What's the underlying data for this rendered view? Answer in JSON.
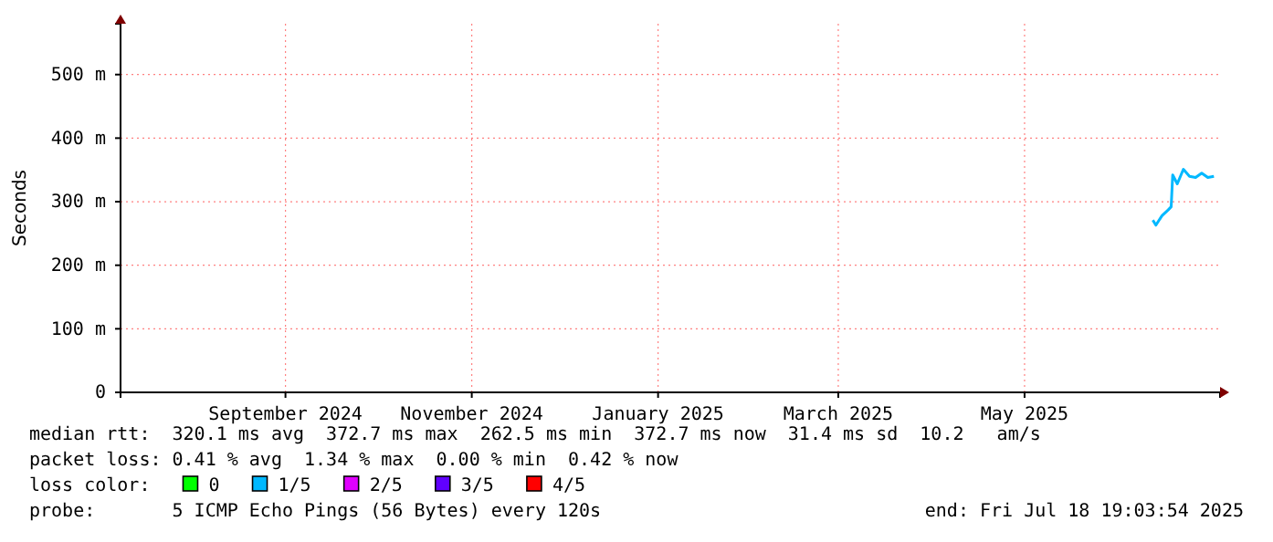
{
  "chart_data": {
    "type": "line",
    "ylabel": "Seconds",
    "legend_title": "loss color:",
    "legend": "bottom",
    "x": [
      "2025-06-26",
      "2025-06-27",
      "2025-06-29",
      "2025-07-01",
      "2025-07-02",
      "2025-07-02T12:00",
      "2025-07-04",
      "2025-07-06",
      "2025-07-08",
      "2025-07-10",
      "2025-07-12",
      "2025-07-14",
      "2025-07-16"
    ],
    "xlim": [
      "2024-07-23",
      "2025-07-18"
    ],
    "xticks": [
      {
        "value": "2024-09-15",
        "label": "September 2024"
      },
      {
        "value": "2024-11-15",
        "label": "November 2024"
      },
      {
        "value": "2025-01-15",
        "label": "January 2025"
      },
      {
        "value": "2025-03-15",
        "label": "March 2025"
      },
      {
        "value": "2025-05-15",
        "label": "May 2025"
      }
    ],
    "ylim": [
      0,
      580
    ],
    "yticks": [
      0,
      {
        "value": 100,
        "label": "100 m"
      },
      {
        "value": 200,
        "label": "200 m"
      },
      {
        "value": 300,
        "label": "300 m"
      },
      {
        "value": 400,
        "label": "400 m"
      },
      {
        "value": 500,
        "label": "500 m"
      }
    ],
    "grid": true,
    "series": [
      {
        "name": "0",
        "color": "#00ff00",
        "values": [
          null,
          null,
          null,
          null,
          null,
          null,
          null,
          null,
          null,
          null,
          null,
          null,
          null
        ]
      },
      {
        "name": "1/5",
        "color": "#00b8ff",
        "values": [
          271,
          263,
          278,
          287,
          292,
          342,
          328,
          351,
          340,
          338,
          345,
          338,
          340
        ]
      },
      {
        "name": "2/5",
        "color": "#e000ff",
        "values": [
          null,
          null,
          null,
          null,
          null,
          null,
          null,
          null,
          null,
          null,
          null,
          null,
          null
        ]
      },
      {
        "name": "3/5",
        "color": "#6000ff",
        "values": [
          null,
          null,
          null,
          null,
          null,
          null,
          null,
          null,
          null,
          null,
          null,
          null,
          null
        ]
      },
      {
        "name": "4/5",
        "color": "#ff0000",
        "values": [
          null,
          null,
          null,
          null,
          null,
          null,
          null,
          null,
          null,
          null,
          null,
          null,
          null
        ]
      }
    ],
    "annotations": [
      "median rtt:  320.1 ms avg  372.7 ms max  262.5 ms min  372.7 ms now  31.4 ms sd  10.2   am/s",
      "packet loss: 0.41 % avg  1.34 % max  0.00 % min  0.42 % now",
      "probe:       5 ICMP Echo Pings (56 Bytes) every 120s",
      "end: Fri Jul 18 19:03:54 2025"
    ]
  }
}
